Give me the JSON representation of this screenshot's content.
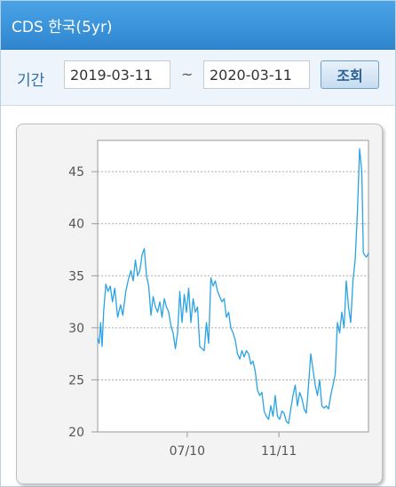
{
  "header": {
    "title": "CDS 한국(5yr)"
  },
  "toolbar": {
    "period_label": "기간",
    "start_date": "2019-03-11",
    "separator": "~",
    "end_date": "2020-03-11",
    "search_label": "조회"
  },
  "colors": {
    "line": "#29a3e3",
    "header": "#3a93d9",
    "grid": "#a8a8a8"
  },
  "chart_data": {
    "type": "line",
    "title": "",
    "xlabel": "",
    "ylabel": "",
    "ylim": [
      20,
      48
    ],
    "xlim": [
      "2019-03-11",
      "2020-03-11"
    ],
    "yticks": [
      20,
      25,
      30,
      35,
      40,
      45
    ],
    "xticks": [
      {
        "x": "2019-07-10",
        "label": "07/10"
      },
      {
        "x": "2019-11-11",
        "label": "11/11"
      }
    ],
    "grid": "horizontal dashed",
    "series": [
      {
        "values_note": "",
        "x": [
          "2019-03-11",
          "2019-03-13",
          "2019-03-15",
          "2019-03-17",
          "2019-03-19",
          "2019-03-22",
          "2019-03-25",
          "2019-03-28",
          "2019-03-31",
          "2019-04-03",
          "2019-04-07",
          "2019-04-11",
          "2019-04-14",
          "2019-04-18",
          "2019-04-22",
          "2019-04-25",
          "2019-04-28",
          "2019-05-01",
          "2019-05-04",
          "2019-05-07",
          "2019-05-10",
          "2019-05-13",
          "2019-05-16",
          "2019-05-19",
          "2019-05-22",
          "2019-05-25",
          "2019-05-28",
          "2019-05-31",
          "2019-06-03",
          "2019-06-06",
          "2019-06-09",
          "2019-06-12",
          "2019-06-15",
          "2019-06-18",
          "2019-06-21",
          "2019-06-24",
          "2019-06-27",
          "2019-06-30",
          "2019-07-03",
          "2019-07-06",
          "2019-07-09",
          "2019-07-12",
          "2019-07-15",
          "2019-07-18",
          "2019-07-21",
          "2019-07-24",
          "2019-07-27",
          "2019-07-30",
          "2019-08-02",
          "2019-08-05",
          "2019-08-08",
          "2019-08-11",
          "2019-08-14",
          "2019-08-17",
          "2019-08-20",
          "2019-08-23",
          "2019-08-26",
          "2019-08-29",
          "2019-09-01",
          "2019-09-04",
          "2019-09-07",
          "2019-09-10",
          "2019-09-13",
          "2019-09-16",
          "2019-09-19",
          "2019-09-22",
          "2019-09-25",
          "2019-09-28",
          "2019-10-01",
          "2019-10-04",
          "2019-10-07",
          "2019-10-10",
          "2019-10-13",
          "2019-10-16",
          "2019-10-19",
          "2019-10-22",
          "2019-10-25",
          "2019-10-28",
          "2019-10-31",
          "2019-11-03",
          "2019-11-06",
          "2019-11-09",
          "2019-11-12",
          "2019-11-15",
          "2019-11-18",
          "2019-11-21",
          "2019-11-24",
          "2019-11-27",
          "2019-11-30",
          "2019-12-03",
          "2019-12-06",
          "2019-12-09",
          "2019-12-12",
          "2019-12-15",
          "2019-12-18",
          "2019-12-21",
          "2019-12-24",
          "2019-12-27",
          "2019-12-30",
          "2020-01-02",
          "2020-01-05",
          "2020-01-08",
          "2020-01-11",
          "2020-01-14",
          "2020-01-17",
          "2020-01-20",
          "2020-01-23",
          "2020-01-26",
          "2020-01-29",
          "2020-02-01",
          "2020-02-04",
          "2020-02-07",
          "2020-02-10",
          "2020-02-13",
          "2020-02-16",
          "2020-02-19",
          "2020-02-22",
          "2020-02-25",
          "2020-02-28",
          "2020-03-02",
          "2020-03-04",
          "2020-03-06",
          "2020-03-08",
          "2020-03-10",
          "2020-03-11"
        ],
        "values": [
          29.0,
          28.5,
          30.5,
          28.2,
          31.5,
          34.2,
          33.5,
          34.0,
          32.5,
          33.8,
          31.0,
          32.2,
          31.2,
          33.5,
          34.8,
          35.5,
          34.5,
          36.5,
          35.0,
          35.5,
          37.0,
          37.6,
          35.0,
          34.0,
          31.2,
          33.0,
          32.0,
          31.5,
          32.5,
          31.0,
          32.8,
          32.0,
          31.5,
          30.2,
          29.5,
          28.0,
          29.5,
          33.5,
          30.5,
          33.2,
          31.5,
          33.8,
          30.5,
          32.8,
          31.5,
          32.0,
          28.2,
          28.0,
          27.8,
          30.5,
          28.5,
          34.8,
          34.0,
          34.5,
          33.5,
          33.0,
          32.5,
          32.8,
          31.0,
          31.5,
          30.0,
          29.5,
          28.8,
          27.5,
          27.0,
          27.8,
          27.2,
          27.8,
          27.5,
          26.5,
          26.8,
          25.8,
          24.0,
          23.5,
          23.8,
          22.0,
          21.5,
          21.2,
          22.5,
          21.5,
          23.5,
          21.5,
          21.2,
          22.0,
          21.8,
          21.0,
          20.8,
          22.2,
          23.5,
          24.5,
          22.5,
          23.8,
          23.2,
          22.2,
          21.8,
          24.5,
          27.5,
          26.0,
          24.5,
          23.5,
          25.0,
          22.5,
          22.3,
          22.5,
          22.2,
          23.5,
          24.5,
          25.5,
          30.5,
          29.5,
          31.5,
          30.0,
          34.5,
          32.0,
          30.5,
          34.5,
          36.5,
          41.0,
          47.2,
          45.0,
          37.2,
          37.0,
          36.8,
          37.0,
          37.2
        ]
      }
    ]
  }
}
